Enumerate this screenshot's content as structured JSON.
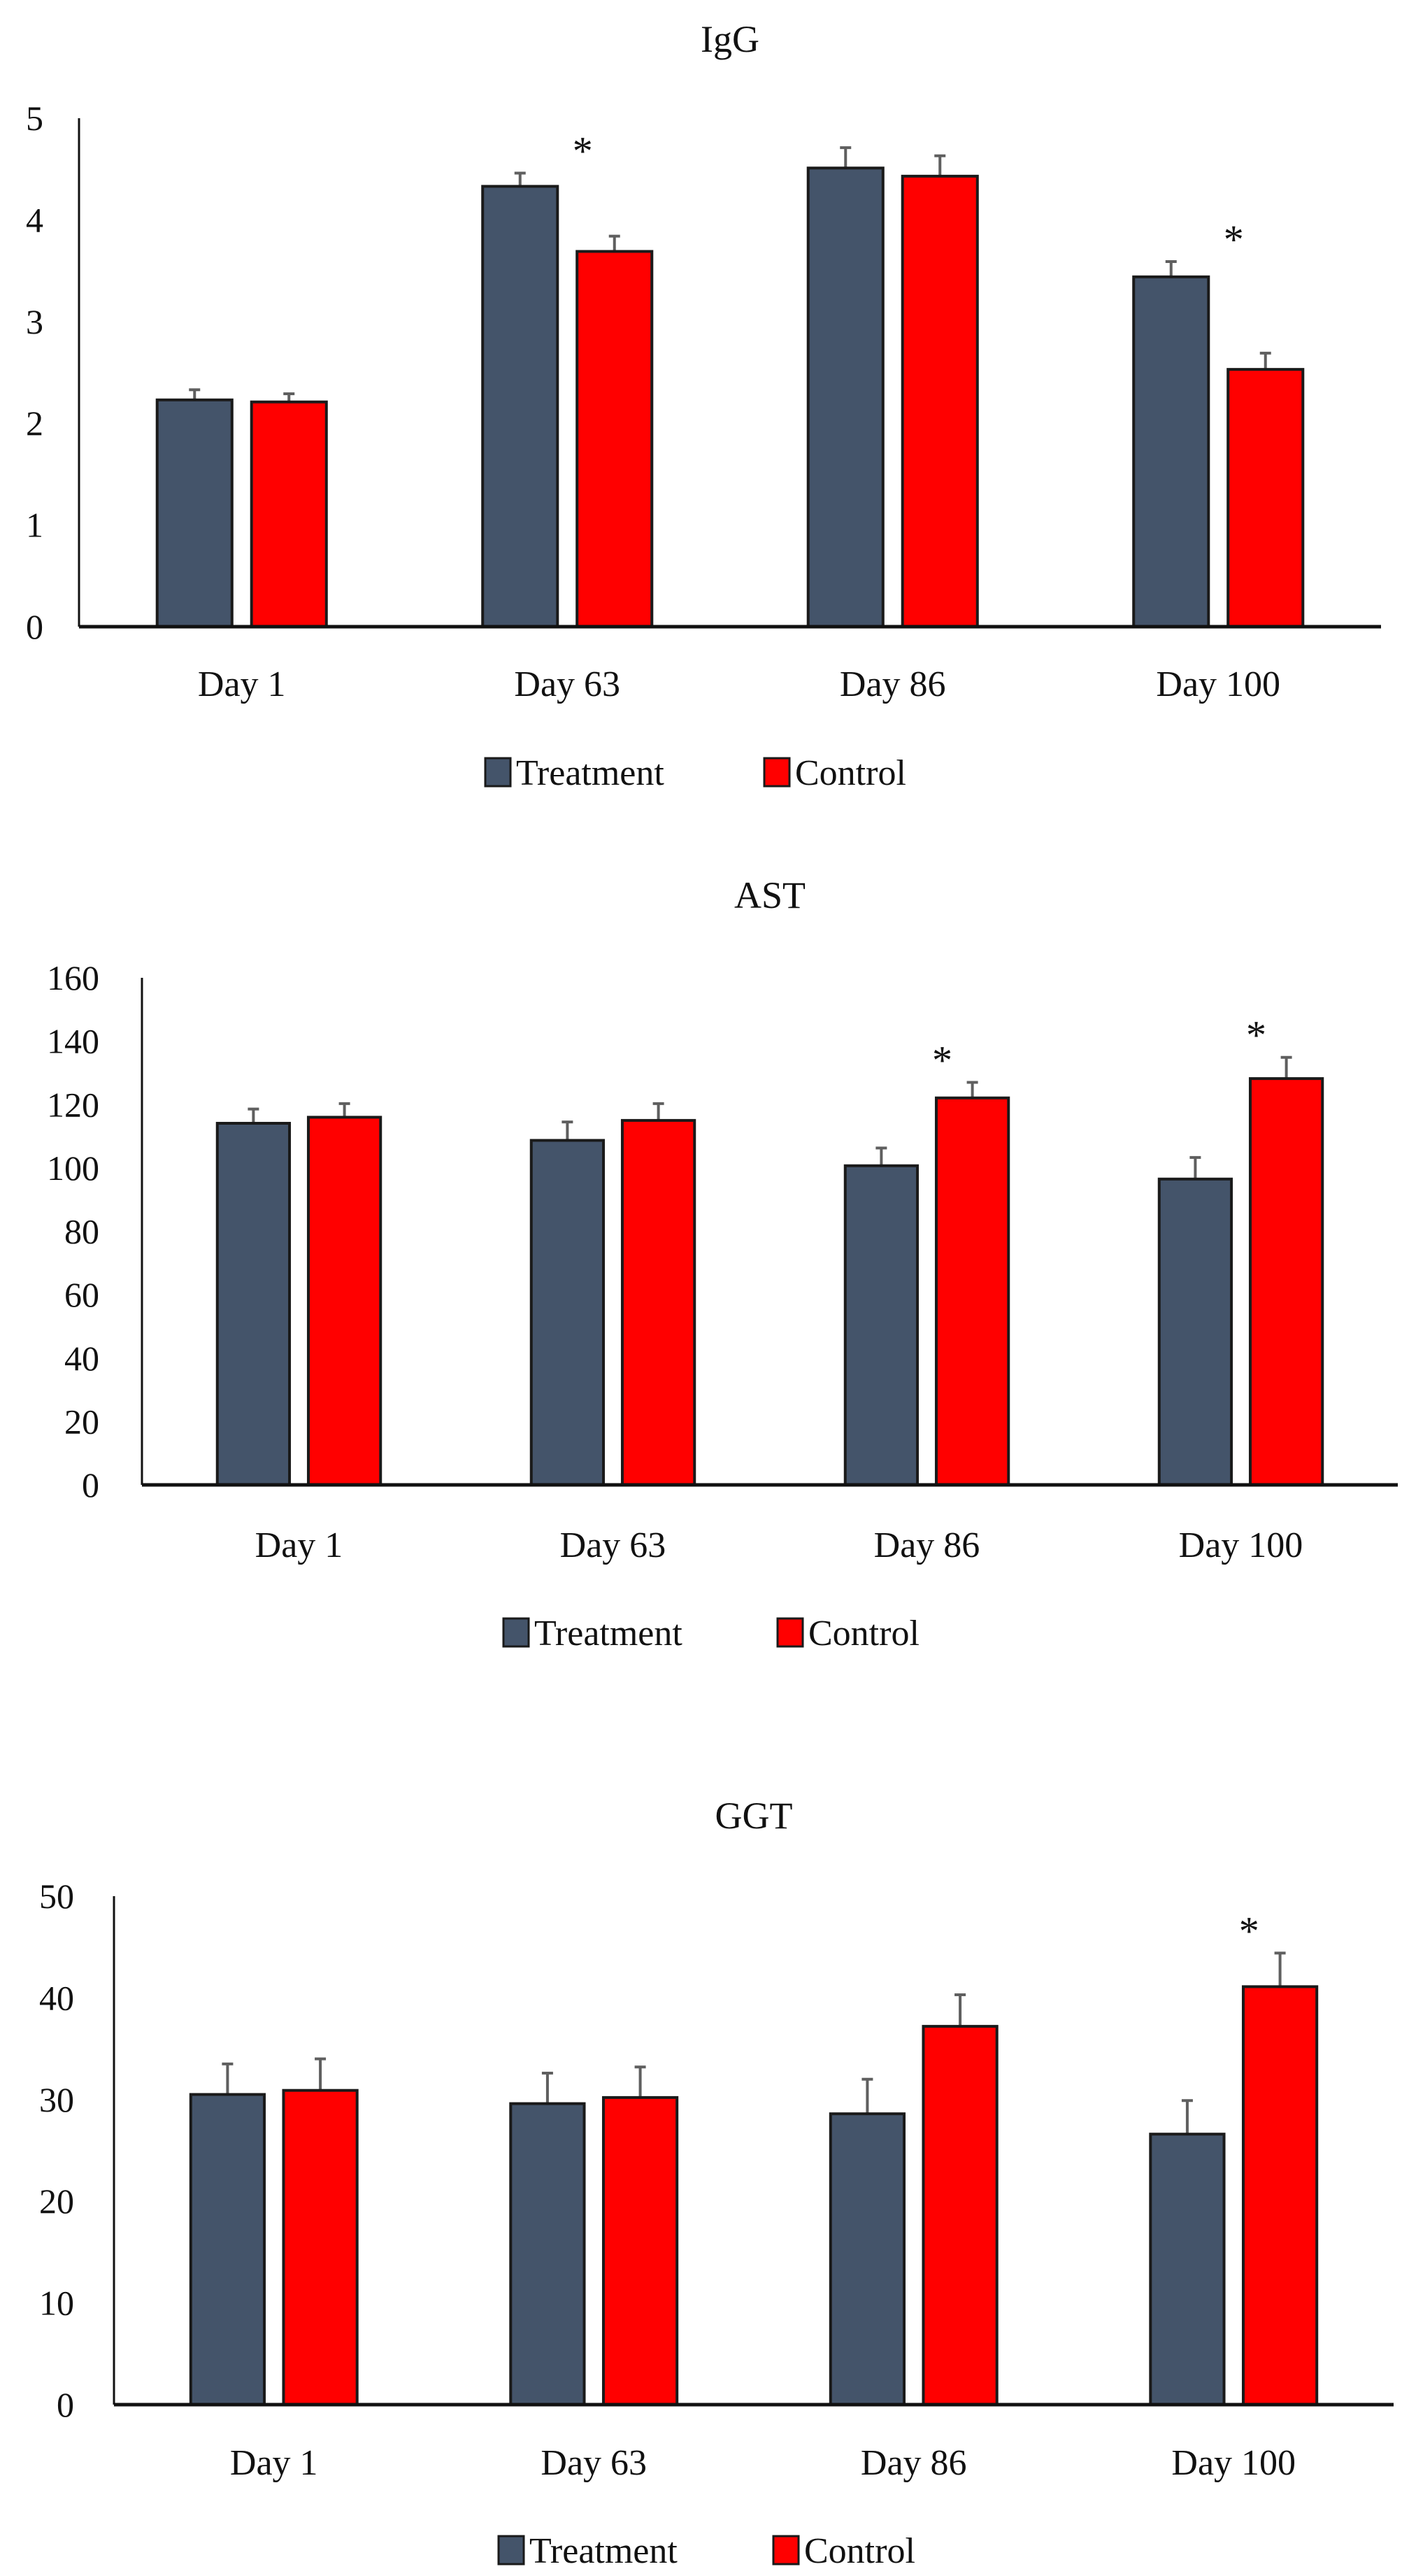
{
  "colors": {
    "Treatment": "#44546a",
    "Control": "#ff0000",
    "error_bar": "#5f5f5f",
    "axis": "#111111"
  },
  "chart_data": [
    {
      "type": "bar",
      "title": "IgG",
      "xlabel": "",
      "ylabel": "",
      "ylim": [
        0,
        5
      ],
      "yticks": [
        "0",
        "1",
        "2",
        "3",
        "4",
        "5"
      ],
      "categories": [
        "Day 1",
        "Day 63",
        "Day 86",
        "Day 100"
      ],
      "series": [
        {
          "name": "Treatment",
          "values": [
            2.23,
            4.33,
            4.51,
            3.44
          ],
          "error_upper": [
            2.33,
            4.46,
            4.71,
            3.59
          ]
        },
        {
          "name": "Control",
          "values": [
            2.21,
            3.69,
            4.43,
            2.53
          ],
          "error_upper": [
            2.29,
            3.84,
            4.63,
            2.69
          ]
        }
      ],
      "significance": [
        "",
        "*",
        "",
        "*"
      ],
      "legend": "bottom",
      "grid": false
    },
    {
      "type": "bar",
      "title": "AST",
      "xlabel": "",
      "ylabel": "",
      "ylim": [
        0,
        160
      ],
      "yticks": [
        "0",
        "20",
        "40",
        "60",
        "80",
        "100",
        "120",
        "140",
        "160"
      ],
      "categories": [
        "Day 1",
        "Day 63",
        "Day 86",
        "Day 100"
      ],
      "series": [
        {
          "name": "Treatment",
          "values": [
            114.1,
            108.7,
            100.7,
            96.5
          ],
          "error_upper": [
            118.6,
            114.5,
            106.3,
            103.3
          ]
        },
        {
          "name": "Control",
          "values": [
            116.0,
            115.0,
            122.1,
            128.2
          ],
          "error_upper": [
            120.3,
            120.3,
            127.0,
            134.9
          ]
        }
      ],
      "significance": [
        "",
        "",
        "*",
        "*"
      ],
      "legend": "bottom",
      "grid": false
    },
    {
      "type": "bar",
      "title": "GGT",
      "xlabel": "",
      "ylabel": "",
      "ylim": [
        0,
        50
      ],
      "yticks": [
        "0",
        "10",
        "20",
        "30",
        "40",
        "50"
      ],
      "categories": [
        "Day 1",
        "Day 63",
        "Day 86",
        "Day 100"
      ],
      "series": [
        {
          "name": "Treatment",
          "values": [
            30.5,
            29.6,
            28.6,
            26.6
          ],
          "error_upper": [
            33.5,
            32.6,
            32.0,
            29.9
          ]
        },
        {
          "name": "Control",
          "values": [
            30.9,
            30.2,
            37.2,
            41.1
          ],
          "error_upper": [
            34.0,
            33.2,
            40.3,
            44.4
          ]
        }
      ],
      "significance": [
        "",
        "",
        "",
        "*"
      ],
      "legend": "bottom",
      "grid": false
    }
  ]
}
